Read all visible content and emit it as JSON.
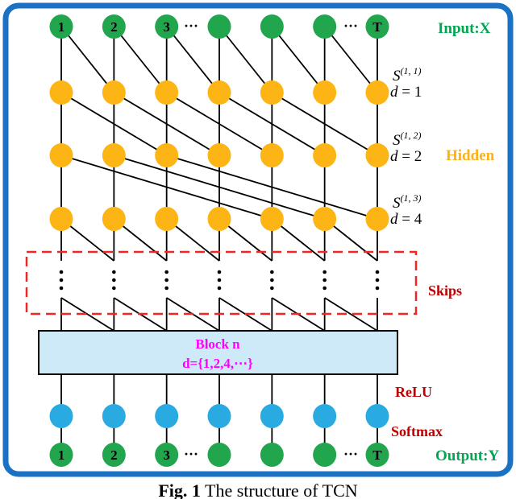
{
  "figure": {
    "caption_bold": "Fig. 1",
    "caption_rest": " The structure of TCN"
  },
  "diagram": {
    "columns": 7,
    "node_labels": [
      "1",
      "2",
      "3",
      "",
      "",
      "",
      "T"
    ],
    "ellipsis": "···",
    "input_label": "Input:X",
    "output_label": "Output:Y",
    "hidden_label": "Hidden",
    "skips_label": "Skips",
    "relu_label": "ReLU",
    "softmax_label": "Softmax",
    "block": {
      "line1": "Block n",
      "line2": "d={1,2,4,⋯}"
    },
    "layer_labels": [
      {
        "s": "S",
        "sup": "(1, 1)",
        "d_italic": "d",
        "d_rest": " = 1"
      },
      {
        "s": "S",
        "sup": "(1, 2)",
        "d_italic": "d",
        "d_rest": " = 2"
      },
      {
        "s": "S",
        "sup": "(1, 3)",
        "d_italic": "d",
        "d_rest": " = 4"
      }
    ],
    "dilations": [
      1,
      2,
      4
    ],
    "colors": {
      "input_node": "#21A54D",
      "hidden_node": "#FCB515",
      "relu_node": "#29ABE2",
      "border": "#1B72C4",
      "skip_box": "#EE2724",
      "dark_red": "#C00000",
      "green_text": "#00A651",
      "hidden_text": "#FBB117",
      "magenta": "#FF00FF",
      "block_fill": "#CEE9F7",
      "line": "#000000"
    }
  }
}
